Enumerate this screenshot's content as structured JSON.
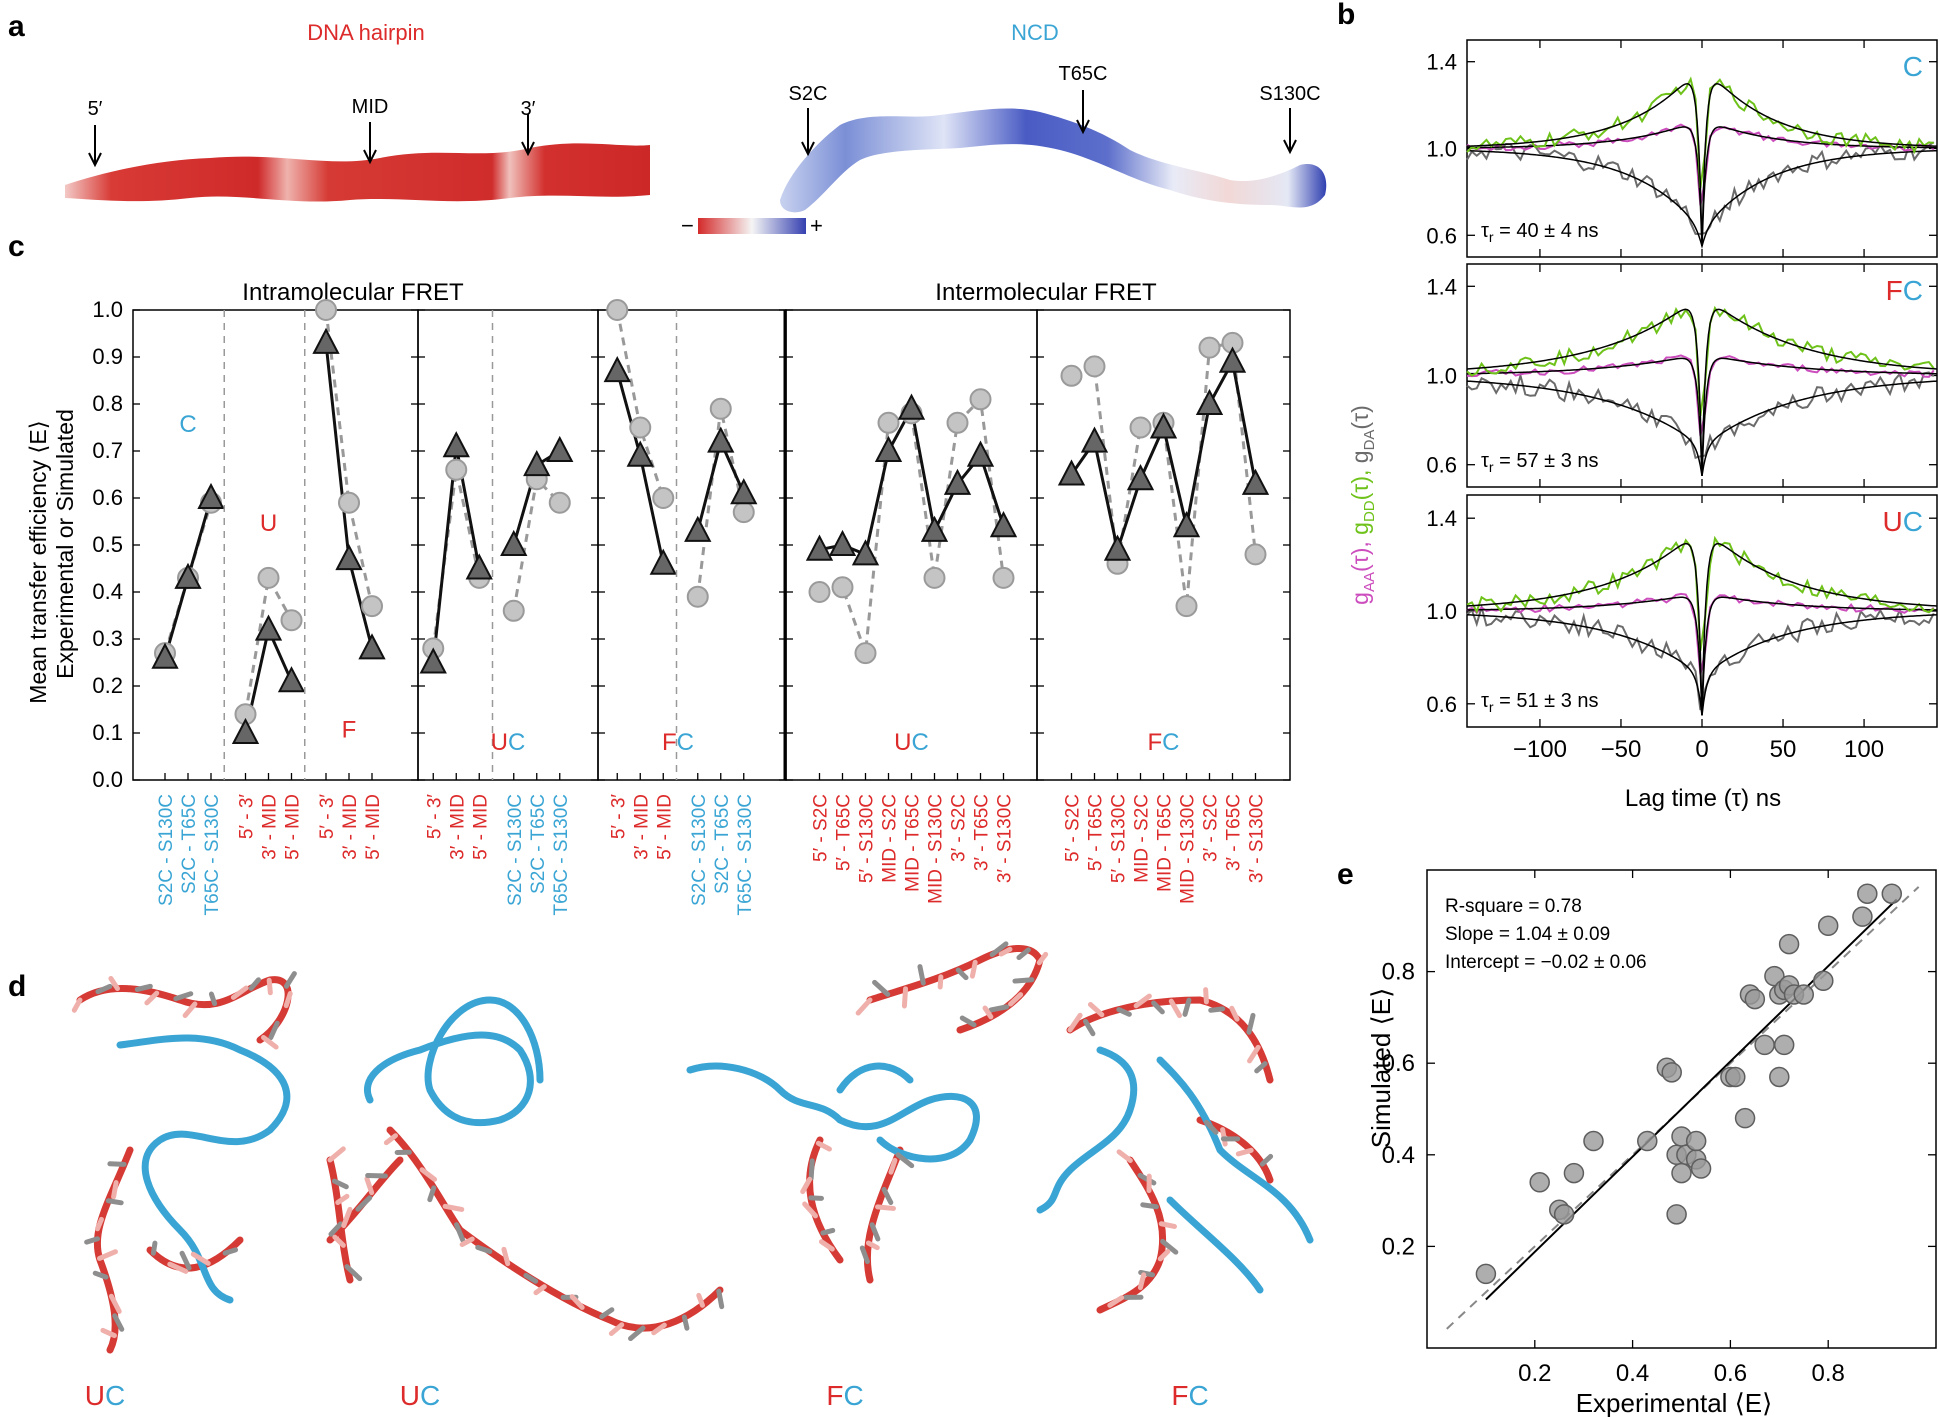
{
  "panel_letters": [
    "a",
    "b",
    "c",
    "d",
    "e"
  ],
  "colors": {
    "red": "#dd2a2a",
    "blue": "#3aa5d4",
    "green": "#6ec21a",
    "magenta": "#cc4dbd",
    "gray": "#6b6b6b",
    "lightgray": "#bdbdbd",
    "dark": "#555555"
  },
  "panel_a": {
    "dna_title": "DNA hairpin",
    "ncd_title": "NCD",
    "dna_markers": [
      "5′",
      "MID",
      "3′"
    ],
    "ncd_markers": [
      "S2C",
      "T65C",
      "S130C"
    ],
    "scale_minus": "−",
    "scale_plus": "+"
  },
  "chart_data": [
    {
      "id": "c",
      "type": "line",
      "title_left": "Intramolecular FRET",
      "title_right": "Intermolecular FRET",
      "ylabel_line1": "Mean transfer efficiency ⟨E⟩",
      "ylabel_line2": "Experimental or  Simulated",
      "ylim": [
        0,
        1.0
      ],
      "yticks": [
        "0.0",
        "0.1",
        "0.2",
        "0.3",
        "0.4",
        "0.5",
        "0.6",
        "0.7",
        "0.8",
        "0.9",
        "1.0"
      ],
      "panels": [
        {
          "label_a": "",
          "label_b": "",
          "groups": [
            {
              "tag": "C",
              "pairs": [
                "S2C - S130C",
                "S2C - T65C",
                "T65C - S130C"
              ],
              "colors": [
                "blue",
                "blue",
                "blue"
              ],
              "experimental": [
                0.26,
                0.43,
                0.6
              ],
              "simulated": [
                0.27,
                0.43,
                0.59
              ]
            },
            {
              "tag": "U",
              "pairs": [
                "5′ - 3′",
                "3′ - MID",
                "5′ - MID"
              ],
              "colors": [
                "red",
                "red",
                "red"
              ],
              "experimental": [
                0.1,
                0.32,
                0.21
              ],
              "simulated": [
                0.14,
                0.43,
                0.34
              ]
            },
            {
              "tag": "F",
              "pairs": [
                "5′ - 3′",
                "3′ - MID",
                "5′ - MID"
              ],
              "colors": [
                "red",
                "red",
                "red"
              ],
              "experimental": [
                0.93,
                0.47,
                0.28
              ],
              "simulated": [
                1.0,
                0.59,
                0.37
              ]
            }
          ]
        },
        {
          "label_a": "U",
          "label_b": "C",
          "groups": [
            {
              "tag": "",
              "pairs": [
                "5′ - 3′",
                "3′ - MID",
                "5′ - MID"
              ],
              "colors": [
                "red",
                "red",
                "red"
              ],
              "experimental": [
                0.25,
                0.71,
                0.45
              ],
              "simulated": [
                0.28,
                0.66,
                0.43
              ]
            },
            {
              "tag": "",
              "pairs": [
                "S2C - S130C",
                "S2C - T65C",
                "T65C - S130C"
              ],
              "colors": [
                "blue",
                "blue",
                "blue"
              ],
              "experimental": [
                0.5,
                0.67,
                0.7
              ],
              "simulated": [
                0.36,
                0.64,
                0.59
              ]
            }
          ]
        },
        {
          "label_a": "F",
          "label_b": "C",
          "groups": [
            {
              "tag": "",
              "pairs": [
                "5′ - 3′",
                "3′ - MID",
                "5′ - MID"
              ],
              "colors": [
                "red",
                "red",
                "red"
              ],
              "experimental": [
                0.87,
                0.69,
                0.46
              ],
              "simulated": [
                1.0,
                0.75,
                0.6
              ]
            },
            {
              "tag": "",
              "pairs": [
                "S2C - S130C",
                "S2C - T65C",
                "T65C - S130C"
              ],
              "colors": [
                "blue",
                "blue",
                "blue"
              ],
              "experimental": [
                0.53,
                0.72,
                0.61
              ],
              "simulated": [
                0.39,
                0.79,
                0.57
              ]
            }
          ]
        },
        {
          "label_a": "U",
          "label_b": "C",
          "groups": [
            {
              "tag": "",
              "pairs": [
                "5′ - S2C",
                "5′ - T65C",
                "5′ - S130C",
                "MID - S2C",
                "MID - T65C",
                "MID - S130C",
                "3′ - S2C",
                "3′ - T65C",
                "3′ - S130C"
              ],
              "colors": [
                "red",
                "red",
                "red",
                "red",
                "red",
                "red",
                "red",
                "red",
                "red"
              ],
              "experimental": [
                0.49,
                0.5,
                0.48,
                0.7,
                0.79,
                0.53,
                0.63,
                0.69,
                0.54
              ],
              "simulated": [
                0.4,
                0.41,
                0.27,
                0.76,
                0.78,
                0.43,
                0.76,
                0.81,
                0.43
              ]
            }
          ]
        },
        {
          "label_a": "F",
          "label_b": "C",
          "groups": [
            {
              "tag": "",
              "pairs": [
                "5′ - S2C",
                "5′ - T65C",
                "5′ - S130C",
                "MID - S2C",
                "MID - T65C",
                "MID - S130C",
                "3′ - S2C",
                "3′ - T65C",
                "3′ - S130C"
              ],
              "colors": [
                "red",
                "red",
                "red",
                "red",
                "red",
                "red",
                "red",
                "red",
                "red"
              ],
              "experimental": [
                0.65,
                0.72,
                0.49,
                0.64,
                0.75,
                0.54,
                0.8,
                0.89,
                0.63
              ],
              "simulated": [
                0.86,
                0.88,
                0.46,
                0.75,
                0.76,
                0.37,
                0.92,
                0.93,
                0.48
              ]
            }
          ]
        }
      ]
    },
    {
      "id": "b",
      "type": "line",
      "xlabel": "Lag time (τ) ns",
      "ylabel": "gAA(τ), gDD(τ), gDA(τ)",
      "ylabel_parts": [
        "g",
        "AA",
        "(τ), ",
        "g",
        "DD",
        "(τ), ",
        "g",
        "DA",
        "(τ)"
      ],
      "xlim": [
        -145,
        145
      ],
      "ylim": [
        0.5,
        1.5
      ],
      "xticks": [
        "−100",
        "−50",
        "0",
        "50",
        "100"
      ],
      "yticks": [
        "0.6",
        "1.0",
        "1.4"
      ],
      "series_names": [
        "gAA",
        "gDD",
        "gDA"
      ],
      "panels": [
        {
          "label_a": "",
          "label_b": "C",
          "tau_text": "τ",
          "tau_sub": "r",
          "tau_value": " = 40 ± 4 ns",
          "tau_r": 40,
          "amp_dd": 0.4,
          "amp_aa": 0.14,
          "amp_da": 0.38
        },
        {
          "label_a": "F",
          "label_b": "C",
          "tau_text": "τ",
          "tau_sub": "r",
          "tau_value": " = 57 ± 3 ns",
          "tau_r": 57,
          "amp_dd": 0.37,
          "amp_aa": 0.1,
          "amp_da": 0.32
        },
        {
          "label_a": "U",
          "label_b": "C",
          "tau_text": "τ",
          "tau_sub": "r",
          "tau_value": " = 51 ± 3 ns",
          "tau_r": 51,
          "amp_dd": 0.37,
          "amp_aa": 0.08,
          "amp_da": 0.28
        }
      ]
    },
    {
      "id": "e",
      "type": "scatter",
      "xlabel": "Experimental ⟨E⟩",
      "ylabel": "Simulated ⟨E⟩",
      "xlim": [
        0,
        1.0
      ],
      "ylim": [
        0,
        1.0
      ],
      "xticks": [
        "0.2",
        "0.4",
        "0.6",
        "0.8"
      ],
      "yticks": [
        "0.2",
        "0.4",
        "0.6",
        "0.8"
      ],
      "annotations": [
        "R-square = 0.78",
        "Slope = 1.04 ± 0.09",
        "Intercept = −0.02 ± 0.06"
      ],
      "fit": {
        "slope": 1.04,
        "intercept": -0.02
      },
      "points": [
        [
          0.1,
          0.14
        ],
        [
          0.21,
          0.34
        ],
        [
          0.25,
          0.28
        ],
        [
          0.26,
          0.27
        ],
        [
          0.28,
          0.36
        ],
        [
          0.32,
          0.43
        ],
        [
          0.43,
          0.43
        ],
        [
          0.47,
          0.59
        ],
        [
          0.48,
          0.58
        ],
        [
          0.49,
          0.27
        ],
        [
          0.49,
          0.4
        ],
        [
          0.5,
          0.36
        ],
        [
          0.5,
          0.44
        ],
        [
          0.51,
          0.4
        ],
        [
          0.53,
          0.39
        ],
        [
          0.53,
          0.43
        ],
        [
          0.54,
          0.37
        ],
        [
          0.6,
          0.57
        ],
        [
          0.61,
          0.57
        ],
        [
          0.63,
          0.48
        ],
        [
          0.64,
          0.75
        ],
        [
          0.65,
          0.74
        ],
        [
          0.67,
          0.64
        ],
        [
          0.69,
          0.79
        ],
        [
          0.7,
          0.75
        ],
        [
          0.7,
          0.57
        ],
        [
          0.71,
          0.64
        ],
        [
          0.71,
          0.76
        ],
        [
          0.72,
          0.86
        ],
        [
          0.72,
          0.77
        ],
        [
          0.73,
          0.75
        ],
        [
          0.75,
          0.75
        ],
        [
          0.79,
          0.78
        ],
        [
          0.8,
          0.9
        ],
        [
          0.87,
          0.92
        ],
        [
          0.88,
          0.97
        ],
        [
          0.93,
          0.97
        ]
      ]
    }
  ],
  "panel_d": {
    "structures": [
      {
        "a": "U",
        "b": "C"
      },
      {
        "a": "U",
        "b": "C"
      },
      {
        "a": "F",
        "b": "C"
      },
      {
        "a": "F",
        "b": "C"
      }
    ]
  }
}
